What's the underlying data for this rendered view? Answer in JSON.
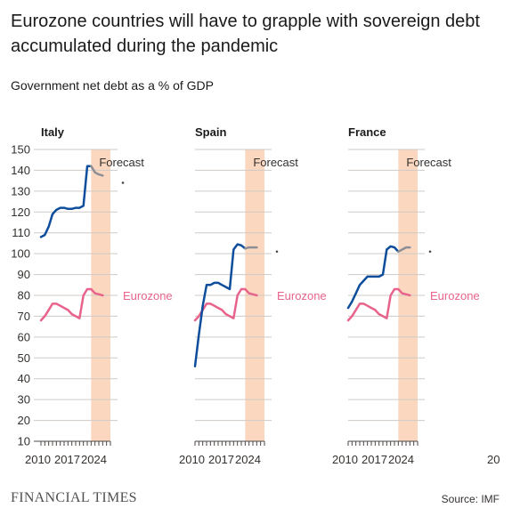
{
  "title": "Eurozone countries will have to grapple with sovereign debt accumulated during the pandemic",
  "subtitle": "Government net debt as a % of GDP",
  "footer": {
    "brand": "FINANCIAL TIMES",
    "source": "Source: IMF"
  },
  "colors": {
    "country": "#0d4d9b",
    "forecast_line": "#8e8e96",
    "eurozone": "#e8638b",
    "forecast_band": "#fbd7bf",
    "grid": "#cfcac5",
    "text": "#33302e"
  },
  "chart_data": {
    "type": "line",
    "ylim": [
      10,
      150
    ],
    "yticks": [
      10,
      20,
      30,
      40,
      50,
      60,
      70,
      80,
      90,
      100,
      110,
      120,
      130,
      140,
      150
    ],
    "xlim": [
      2008,
      2026
    ],
    "xticks": [
      "2010",
      "2017",
      "2024"
    ],
    "extra_tick_label": "20",
    "forecast_start": 2021,
    "forecast_label": "Forecast",
    "panels": [
      {
        "name": "Italy",
        "series": [
          {
            "name": "Italy",
            "x": [
              2008,
              2009,
              2010,
              2011,
              2012,
              2013,
              2014,
              2015,
              2016,
              2017,
              2018,
              2019,
              2020,
              2021,
              2022,
              2023,
              2024,
              2025,
              2026
            ],
            "y": [
              108,
              109,
              113,
              119,
              121,
              122,
              122,
              121.5,
              121.5,
              122,
              122,
              123,
              142,
              142,
              139,
              138,
              137.5,
              null,
              null
            ]
          },
          {
            "name": "Eurozone",
            "x": [
              2008,
              2009,
              2010,
              2011,
              2012,
              2013,
              2014,
              2015,
              2016,
              2017,
              2018,
              2019,
              2020,
              2021,
              2022,
              2023,
              2024,
              2025,
              2026
            ],
            "y": [
              68,
              70,
              73,
              76,
              76,
              75,
              74,
              73,
              71,
              70,
              69,
              80,
              83,
              83,
              81,
              80.5,
              80,
              null,
              null
            ]
          }
        ],
        "eurozone_label": "Eurozone",
        "end_dot_y": 134
      },
      {
        "name": "Spain",
        "series": [
          {
            "name": "Spain",
            "x": [
              2008,
              2009,
              2010,
              2011,
              2012,
              2013,
              2014,
              2015,
              2016,
              2017,
              2018,
              2019,
              2020,
              2021,
              2022,
              2023,
              2024,
              2025,
              2026
            ],
            "y": [
              46,
              61,
              75,
              85,
              85,
              86,
              86,
              85,
              84,
              83,
              102,
              104.5,
              104,
              102.5,
              103,
              103,
              103,
              null,
              null
            ]
          },
          {
            "name": "Eurozone",
            "x": [
              2008,
              2009,
              2010,
              2011,
              2012,
              2013,
              2014,
              2015,
              2016,
              2017,
              2018,
              2019,
              2020,
              2021,
              2022,
              2023,
              2024,
              2025,
              2026
            ],
            "y": [
              68,
              70,
              73,
              76,
              76,
              75,
              74,
              73,
              71,
              70,
              69,
              80,
              83,
              83,
              81,
              80.5,
              80,
              null,
              null
            ]
          }
        ],
        "eurozone_label": "Eurozone",
        "end_dot_y": 101
      },
      {
        "name": "France",
        "series": [
          {
            "name": "France",
            "x": [
              2008,
              2009,
              2010,
              2011,
              2012,
              2013,
              2014,
              2015,
              2016,
              2017,
              2018,
              2019,
              2020,
              2021,
              2022,
              2023,
              2024,
              2025,
              2026
            ],
            "y": [
              74,
              77,
              81,
              85,
              87,
              89,
              89,
              89,
              89,
              90,
              102,
              103.5,
              103,
              101,
              102,
              103,
              103,
              null,
              null
            ]
          },
          {
            "name": "Eurozone",
            "x": [
              2008,
              2009,
              2010,
              2011,
              2012,
              2013,
              2014,
              2015,
              2016,
              2017,
              2018,
              2019,
              2020,
              2021,
              2022,
              2023,
              2024,
              2025,
              2026
            ],
            "y": [
              68,
              70,
              73,
              76,
              76,
              75,
              74,
              73,
              71,
              70,
              69,
              80,
              83,
              83,
              81,
              80.5,
              80,
              null,
              null
            ]
          }
        ],
        "eurozone_label": "Eurozone",
        "end_dot_y": 101
      }
    ]
  }
}
